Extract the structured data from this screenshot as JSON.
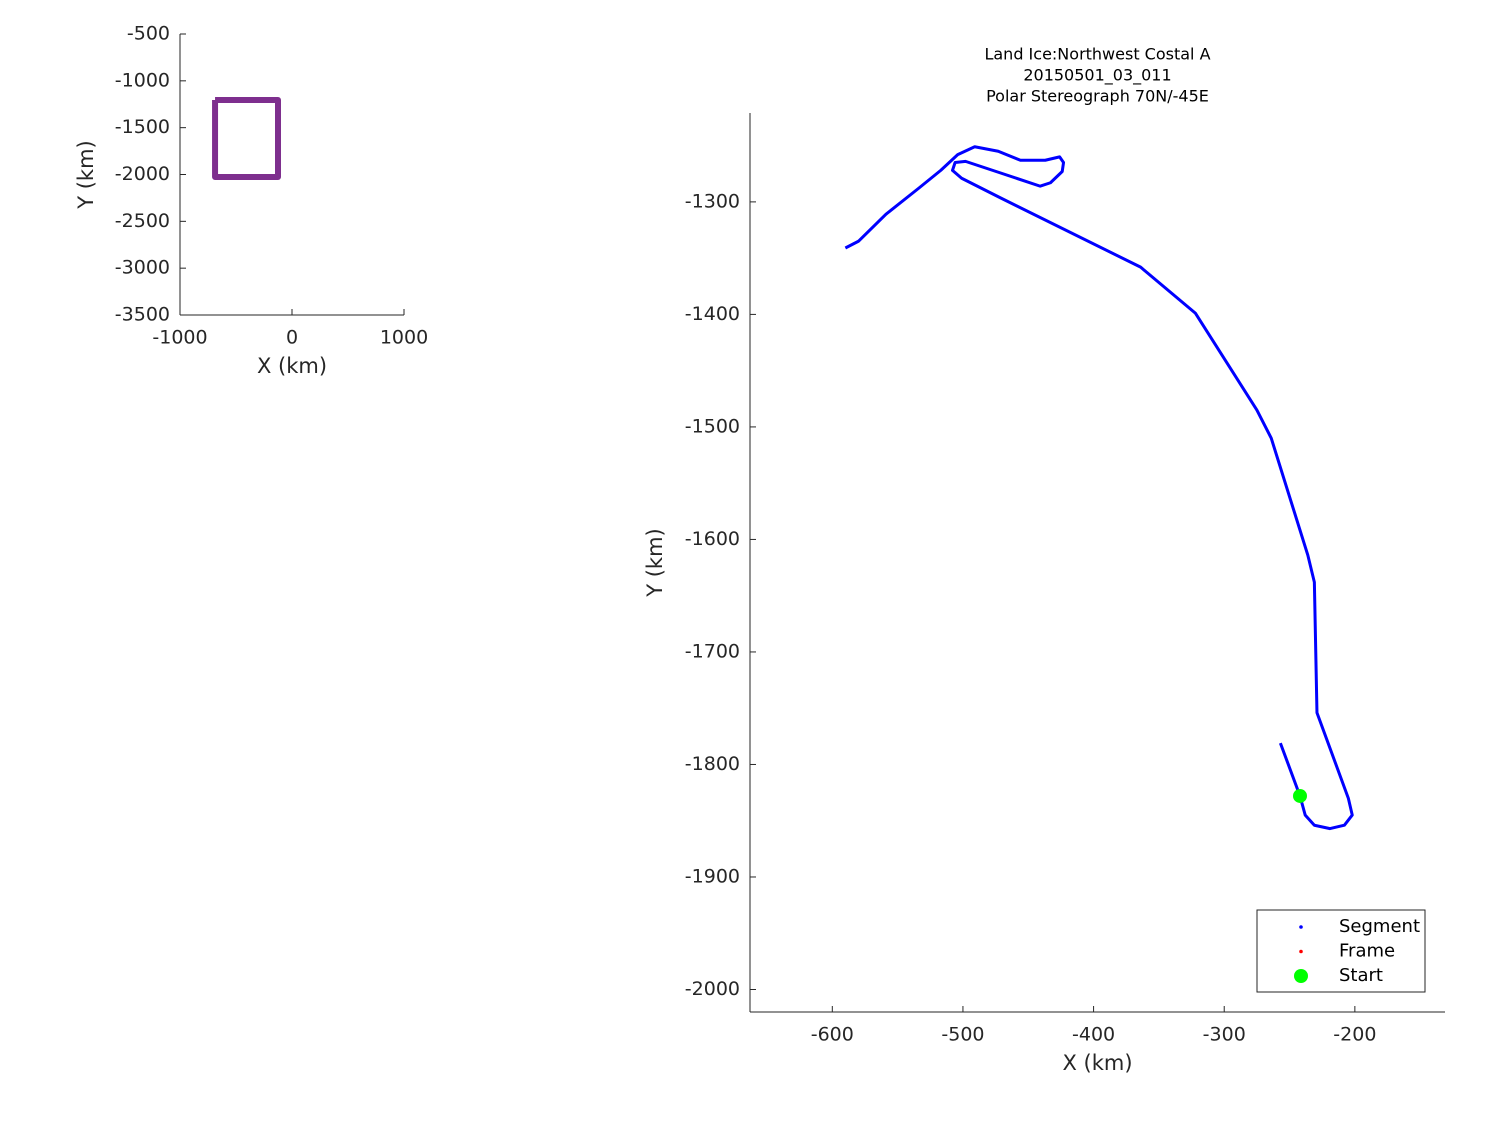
{
  "chart_data": [
    {
      "type": "line",
      "xlabel": "X (km)",
      "ylabel": "Y (km)",
      "xlim": [
        -1000,
        1000
      ],
      "ylim": [
        -3500,
        -500
      ],
      "xticks": [
        -1000,
        0,
        1000
      ],
      "yticks": [
        -3500,
        -3000,
        -2500,
        -2000,
        -1500,
        -1000,
        -500
      ],
      "series": [
        {
          "color": "#7e2f8e",
          "style": "line",
          "x": [
            -687,
            -125,
            -125,
            -687,
            -687
          ],
          "y": [
            -1205,
            -1205,
            -2027,
            -2027,
            -1205
          ]
        }
      ]
    },
    {
      "type": "line",
      "title": [
        "Land Ice:Northwest Costal A",
        "20150501_03_011",
        "Polar Stereograph 70N/-45E"
      ],
      "xlabel": "X (km)",
      "ylabel": "Y (km)",
      "xlim": [
        -663,
        -131
      ],
      "ylim": [
        -2020,
        -1221
      ],
      "xticks": [
        -600,
        -500,
        -400,
        -300,
        -200
      ],
      "yticks": [
        -2000,
        -1900,
        -1800,
        -1700,
        -1600,
        -1500,
        -1400,
        -1300
      ],
      "legend": "lower right",
      "series": [
        {
          "name": "Segment",
          "color": "#0000ff",
          "style": "line",
          "x": [
            -590,
            -580,
            -559,
            -534,
            -517,
            -504,
            -491,
            -473,
            -456,
            -437,
            -426,
            -423,
            -424,
            -433,
            -441,
            -472,
            -498,
            -506,
            -508,
            -501,
            -472,
            -364,
            -322,
            -275,
            -264,
            -236,
            -231,
            -229,
            -205,
            -202,
            -208,
            -219,
            -231,
            -238,
            -242,
            -257
          ],
          "y": [
            -1341,
            -1335,
            -1311,
            -1288,
            -1272,
            -1258,
            -1251,
            -1255,
            -1263,
            -1263,
            -1260,
            -1265,
            -1273,
            -1283,
            -1286,
            -1274,
            -1264,
            -1265,
            -1272,
            -1279,
            -1296,
            -1358,
            -1399,
            -1485,
            -1510,
            -1614,
            -1638,
            -1754,
            -1830,
            -1845,
            -1854,
            -1857,
            -1854,
            -1845,
            -1828,
            -1781
          ]
        },
        {
          "name": "Frame",
          "color": "#ff0000",
          "style": "marker",
          "x": [],
          "y": []
        },
        {
          "name": "Start",
          "color": "#00ff00",
          "style": "marker",
          "x": [
            -242
          ],
          "y": [
            -1828
          ]
        }
      ]
    }
  ]
}
